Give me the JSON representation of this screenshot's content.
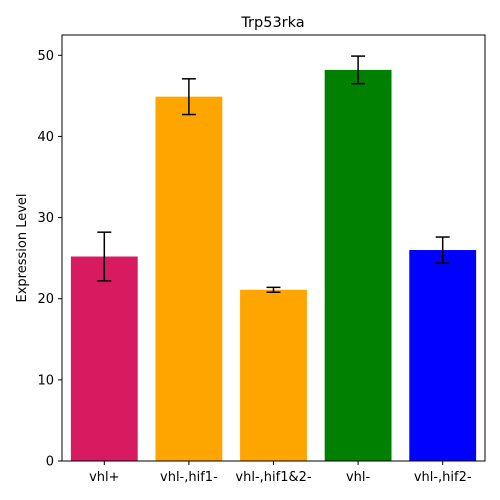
{
  "chart_data": {
    "type": "bar",
    "title": "Trp53rka",
    "xlabel": "",
    "ylabel": "Expression Level",
    "categories": [
      "vhl+",
      "vhl-,hif1-",
      "vhl-,hif1&2-",
      "vhl-",
      "vhl-,hif2-"
    ],
    "values": [
      25.2,
      44.9,
      21.1,
      48.2,
      26.0
    ],
    "errors": [
      3.0,
      2.2,
      0.3,
      1.7,
      1.6
    ],
    "colors": [
      "#d81b60",
      "#ffa500",
      "#ffa500",
      "#008000",
      "#0000ff"
    ],
    "ylim": [
      0,
      52.5
    ],
    "yticks": [
      0,
      10,
      20,
      30,
      40,
      50
    ],
    "grid": false
  }
}
